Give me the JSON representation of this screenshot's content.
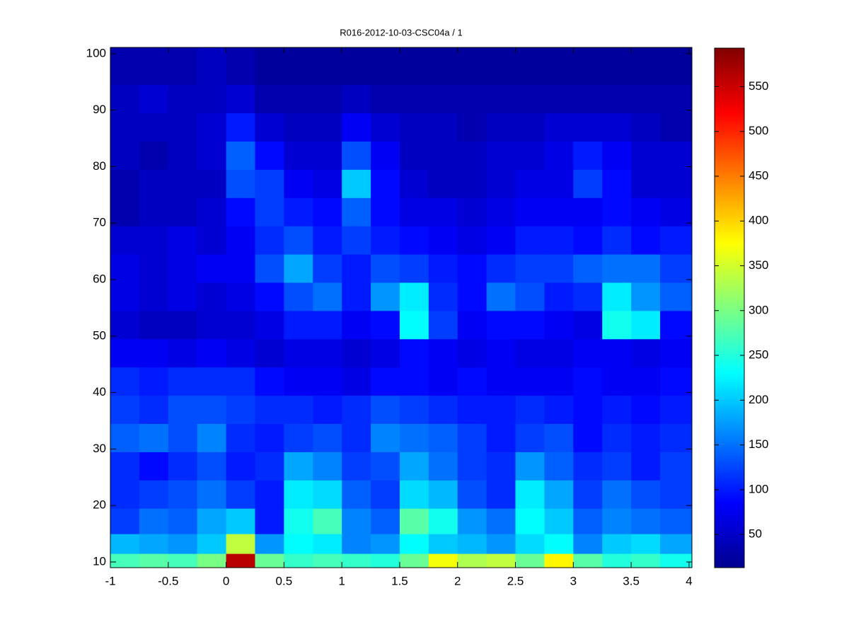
{
  "chart_data": {
    "type": "heatmap",
    "title": "R016-2012-10-03-CSC04a / 1",
    "x": [
      -0.875,
      -0.625,
      -0.375,
      -0.125,
      0.125,
      0.375,
      0.625,
      0.875,
      1.125,
      1.375,
      1.625,
      1.875,
      2.125,
      2.375,
      2.625,
      2.875,
      3.125,
      3.375,
      3.625,
      3.875
    ],
    "y": [
      10,
      13,
      17,
      22,
      27,
      32,
      37,
      42,
      47,
      52,
      57,
      62,
      67,
      72,
      77,
      82,
      87,
      92,
      97
    ],
    "z": [
      [
        270,
        280,
        270,
        300,
        560,
        290,
        260,
        270,
        260,
        250,
        290,
        370,
        330,
        340,
        290,
        380,
        280,
        250,
        260,
        240
      ],
      [
        190,
        180,
        170,
        200,
        340,
        170,
        230,
        220,
        160,
        170,
        230,
        200,
        190,
        170,
        210,
        230,
        160,
        200,
        210,
        180
      ],
      [
        120,
        150,
        140,
        180,
        200,
        100,
        240,
        270,
        160,
        140,
        280,
        240,
        170,
        150,
        230,
        200,
        140,
        160,
        150,
        140
      ],
      [
        110,
        120,
        130,
        150,
        120,
        100,
        220,
        210,
        140,
        120,
        210,
        190,
        130,
        110,
        220,
        180,
        120,
        150,
        130,
        120
      ],
      [
        110,
        90,
        110,
        130,
        100,
        110,
        180,
        160,
        120,
        130,
        180,
        150,
        120,
        110,
        170,
        140,
        110,
        120,
        100,
        120
      ],
      [
        140,
        150,
        130,
        160,
        110,
        100,
        120,
        130,
        110,
        160,
        150,
        140,
        120,
        100,
        120,
        130,
        90,
        110,
        100,
        110
      ],
      [
        120,
        110,
        130,
        130,
        120,
        110,
        110,
        100,
        110,
        130,
        120,
        110,
        100,
        100,
        110,
        100,
        90,
        100,
        90,
        100
      ],
      [
        110,
        100,
        110,
        110,
        110,
        90,
        80,
        80,
        70,
        90,
        90,
        80,
        90,
        80,
        80,
        80,
        90,
        80,
        80,
        90
      ],
      [
        80,
        80,
        70,
        80,
        70,
        60,
        70,
        70,
        60,
        70,
        90,
        80,
        70,
        80,
        70,
        70,
        80,
        80,
        70,
        80
      ],
      [
        60,
        50,
        50,
        60,
        60,
        70,
        100,
        100,
        80,
        90,
        230,
        120,
        80,
        90,
        90,
        80,
        70,
        240,
        220,
        90
      ],
      [
        70,
        60,
        70,
        60,
        70,
        90,
        130,
        150,
        100,
        170,
        220,
        110,
        90,
        150,
        130,
        100,
        110,
        220,
        170,
        140
      ],
      [
        70,
        60,
        70,
        80,
        80,
        130,
        180,
        120,
        100,
        130,
        120,
        100,
        90,
        110,
        120,
        120,
        140,
        150,
        150,
        120
      ],
      [
        60,
        60,
        70,
        60,
        80,
        110,
        130,
        100,
        120,
        100,
        90,
        80,
        70,
        80,
        100,
        100,
        90,
        110,
        90,
        100
      ],
      [
        40,
        50,
        50,
        60,
        90,
        120,
        100,
        90,
        140,
        90,
        70,
        70,
        60,
        70,
        80,
        80,
        80,
        90,
        80,
        70
      ],
      [
        40,
        50,
        50,
        50,
        130,
        120,
        80,
        70,
        200,
        90,
        60,
        50,
        50,
        60,
        70,
        70,
        120,
        90,
        60,
        60
      ],
      [
        50,
        40,
        50,
        60,
        140,
        90,
        60,
        60,
        130,
        80,
        50,
        50,
        50,
        60,
        60,
        70,
        100,
        80,
        60,
        60
      ],
      [
        50,
        50,
        50,
        60,
        100,
        60,
        50,
        50,
        80,
        60,
        50,
        50,
        40,
        50,
        50,
        60,
        60,
        60,
        50,
        40
      ],
      [
        50,
        60,
        50,
        50,
        60,
        40,
        40,
        40,
        50,
        40,
        40,
        40,
        40,
        40,
        40,
        40,
        40,
        40,
        40,
        40
      ],
      [
        40,
        40,
        40,
        50,
        40,
        30,
        30,
        30,
        30,
        30,
        30,
        30,
        30,
        30,
        30,
        30,
        30,
        30,
        30,
        30
      ]
    ],
    "xlim": [
      -1,
      4.025
    ],
    "ylim": [
      9,
      101.1
    ],
    "xticks": [
      -1,
      -0.5,
      0,
      0.5,
      1,
      1.5,
      2,
      2.5,
      3,
      3.5,
      4
    ],
    "yticks": [
      10,
      20,
      30,
      40,
      50,
      60,
      70,
      80,
      90,
      100
    ],
    "colormap": "jet",
    "clim": [
      13,
      593
    ],
    "cticks": [
      50,
      100,
      150,
      200,
      250,
      300,
      350,
      400,
      450,
      500,
      550
    ]
  }
}
